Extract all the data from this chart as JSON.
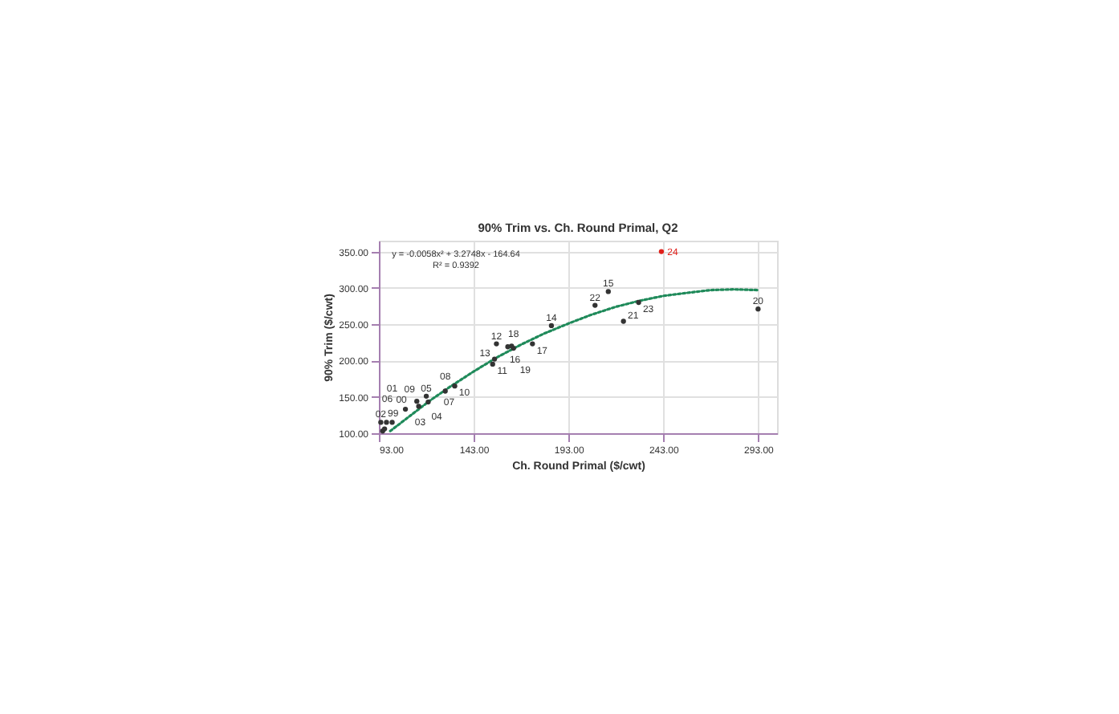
{
  "chart_data": {
    "type": "scatter",
    "title": "90% Trim vs. Ch. Round Primal, Q2",
    "xlabel": "Ch. Round Primal ($/cwt)",
    "ylabel": "90% Trim ($/cwt)",
    "xlim": [
      93,
      303
    ],
    "ylim": [
      100,
      365
    ],
    "xticks": [
      {
        "value": 93,
        "label": "93.00"
      },
      {
        "value": 143,
        "label": "143.00"
      },
      {
        "value": 193,
        "label": "193.00"
      },
      {
        "value": 243,
        "label": "243.00"
      },
      {
        "value": 293,
        "label": "293.00"
      }
    ],
    "yticks": [
      {
        "value": 100,
        "label": "100.00"
      },
      {
        "value": 150,
        "label": "150.00"
      },
      {
        "value": 200,
        "label": "200.00"
      },
      {
        "value": 250,
        "label": "250.00"
      },
      {
        "value": 300,
        "label": "300.00"
      },
      {
        "value": 350,
        "label": "350.00"
      }
    ],
    "grid": true,
    "marker": "circle",
    "annotations": [
      "y = -0.0058x² + 3.2748x - 164.64",
      "R² = 0.9392",
      {
        "text": "99",
        "x": 95,
        "y": 103
      },
      {
        "text": "00",
        "x": 96,
        "y": 106
      },
      {
        "text": "02",
        "x": 94,
        "y": 115
      },
      {
        "text": "03",
        "x": 97,
        "y": 115
      },
      {
        "text": "01",
        "x": 100,
        "y": 115
      },
      {
        "text": "04",
        "x": 114,
        "y": 137
      },
      {
        "text": "05",
        "x": 118,
        "y": 151
      },
      {
        "text": "06",
        "x": 107,
        "y": 133
      },
      {
        "text": "07",
        "x": 119,
        "y": 143
      },
      {
        "text": "08",
        "x": 128,
        "y": 158
      },
      {
        "text": "09",
        "x": 113,
        "y": 144
      },
      {
        "text": "10",
        "x": 133,
        "y": 165
      },
      {
        "text": "11",
        "x": 153,
        "y": 195
      },
      {
        "text": "12",
        "x": 155,
        "y": 223
      },
      {
        "text": "13",
        "x": 154,
        "y": 202
      },
      {
        "text": "14",
        "x": 184,
        "y": 248
      },
      {
        "text": "15",
        "x": 214,
        "y": 295
      },
      {
        "text": "16",
        "x": 161,
        "y": 219
      },
      {
        "text": "17",
        "x": 174,
        "y": 223
      },
      {
        "text": "18",
        "x": 164,
        "y": 217
      },
      {
        "text": "19",
        "x": 163,
        "y": 220
      },
      {
        "text": "20",
        "x": 293,
        "y": 271
      },
      {
        "text": "21",
        "x": 222,
        "y": 254
      },
      {
        "text": "22",
        "x": 207,
        "y": 276
      },
      {
        "text": "23",
        "x": 230,
        "y": 280
      },
      {
        "text": "24",
        "x": 242,
        "y": 350
      }
    ],
    "series": [
      {
        "x": [
          95,
          96,
          94,
          97,
          100,
          114,
          118,
          107,
          119,
          128,
          113,
          133,
          153,
          155,
          154,
          184,
          214,
          161,
          174,
          164,
          163,
          293,
          222,
          207,
          230,
          242
        ],
        "values": [
          103,
          106,
          115,
          115,
          115,
          137,
          151,
          133,
          143,
          158,
          144,
          165,
          195,
          223,
          202,
          248,
          295,
          219,
          223,
          217,
          220,
          271,
          254,
          276,
          280,
          350
        ],
        "colors": [
          "#333333",
          "#333333",
          "#333333",
          "#333333",
          "#333333",
          "#333333",
          "#333333",
          "#333333",
          "#333333",
          "#333333",
          "#333333",
          "#333333",
          "#333333",
          "#333333",
          "#333333",
          "#333333",
          "#333333",
          "#333333",
          "#333333",
          "#333333",
          "#333333",
          "#333333",
          "#333333",
          "#333333",
          "#333333",
          "#e0201b"
        ]
      },
      {
        "type": "line",
        "color": "#1f8a5a",
        "line_style": "dotted",
        "marker": "none",
        "x": [
          99,
          110,
          120,
          130,
          143,
          155,
          168,
          180,
          193,
          205,
          218,
          230,
          243,
          255,
          268,
          280,
          293
        ],
        "values": [
          103,
          125,
          145,
          163,
          185,
          204,
          222,
          237,
          251,
          263,
          274,
          282,
          289,
          293,
          297,
          298,
          297
        ]
      }
    ]
  }
}
